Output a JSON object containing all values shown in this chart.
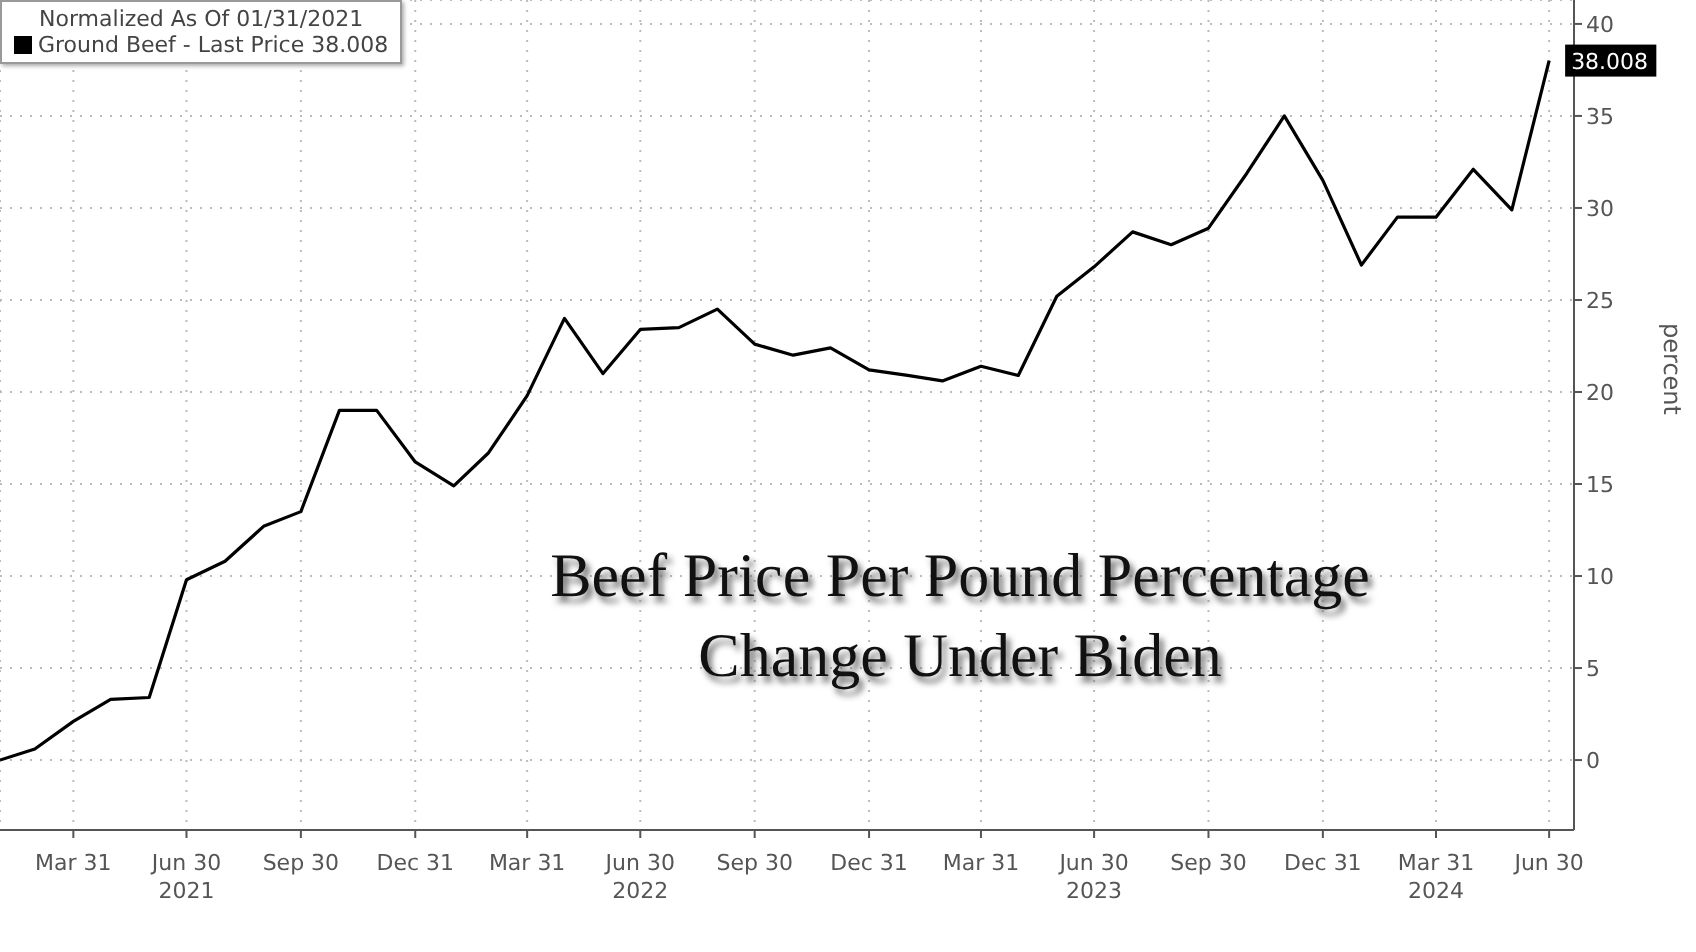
{
  "chart_data": {
    "type": "line",
    "title": "Beef Price Per Pound Percentage Change Under Biden",
    "ylabel": "percent",
    "legend_title": "Normalized As Of 01/31/2021",
    "x": [
      "2021-01-31",
      "2021-02-28",
      "2021-03-31",
      "2021-04-30",
      "2021-05-31",
      "2021-06-30",
      "2021-07-31",
      "2021-08-31",
      "2021-09-30",
      "2021-10-31",
      "2021-11-30",
      "2021-12-31",
      "2022-01-31",
      "2022-02-28",
      "2022-03-31",
      "2022-04-30",
      "2022-05-31",
      "2022-06-30",
      "2022-07-31",
      "2022-08-31",
      "2022-09-30",
      "2022-10-31",
      "2022-11-30",
      "2022-12-31",
      "2023-01-31",
      "2023-02-28",
      "2023-03-31",
      "2023-04-30",
      "2023-05-31",
      "2023-06-30",
      "2023-07-31",
      "2023-08-31",
      "2023-09-30",
      "2023-10-31",
      "2023-11-30",
      "2023-12-31",
      "2024-01-31",
      "2024-02-29",
      "2024-03-31",
      "2024-04-30",
      "2024-05-31",
      "2024-06-30"
    ],
    "series": [
      {
        "name": "Ground Beef - Last Price 38.008",
        "color": "#000000",
        "values": [
          0,
          0.6,
          2.1,
          3.3,
          3.4,
          9.8,
          10.8,
          12.7,
          13.5,
          19.0,
          19.0,
          16.2,
          14.9,
          16.7,
          19.8,
          24.0,
          21.0,
          23.4,
          23.5,
          24.5,
          22.6,
          22.0,
          22.4,
          21.2,
          20.9,
          20.6,
          21.4,
          20.9,
          25.2,
          26.8,
          28.7,
          28.0,
          28.9,
          31.9,
          35.0,
          31.5,
          26.9,
          29.5,
          29.5,
          32.1,
          29.9,
          38.008
        ],
        "value_labels": [
          null,
          null,
          null,
          null,
          null,
          null,
          null,
          null,
          null,
          null,
          null,
          null,
          null,
          null,
          null,
          null,
          null,
          null,
          null,
          null,
          null,
          null,
          null,
          null,
          null,
          null,
          null,
          null,
          null,
          null,
          null,
          null,
          null,
          null,
          null,
          null,
          null,
          null,
          null,
          null,
          null,
          "38.008"
        ]
      }
    ],
    "xlim": [
      "2021-01-31",
      "2024-07-20"
    ],
    "xticks": [
      {
        "value": "2021-03-31",
        "label": "Mar 31"
      },
      {
        "value": "2021-06-30",
        "label": "Jun 30\n2021"
      },
      {
        "value": "2021-09-30",
        "label": "Sep 30"
      },
      {
        "value": "2021-12-31",
        "label": "Dec 31"
      },
      {
        "value": "2022-03-31",
        "label": "Mar 31"
      },
      {
        "value": "2022-06-30",
        "label": "Jun 30\n2022"
      },
      {
        "value": "2022-09-30",
        "label": "Sep 30"
      },
      {
        "value": "2022-12-31",
        "label": "Dec 31"
      },
      {
        "value": "2023-03-31",
        "label": "Mar 31"
      },
      {
        "value": "2023-06-30",
        "label": "Jun 30\n2023"
      },
      {
        "value": "2023-09-30",
        "label": "Sep 30"
      },
      {
        "value": "2023-12-31",
        "label": "Dec 31"
      },
      {
        "value": "2024-03-31",
        "label": "Mar 31\n2024"
      },
      {
        "value": "2024-06-30",
        "label": "Jun 30"
      }
    ],
    "ylim": [
      -3.8,
      41.3
    ],
    "yticks": [
      0,
      5,
      10,
      15,
      20,
      25,
      30,
      35,
      40
    ],
    "grid": true,
    "legend": "top left",
    "marker": "none",
    "line_style": "solid"
  }
}
